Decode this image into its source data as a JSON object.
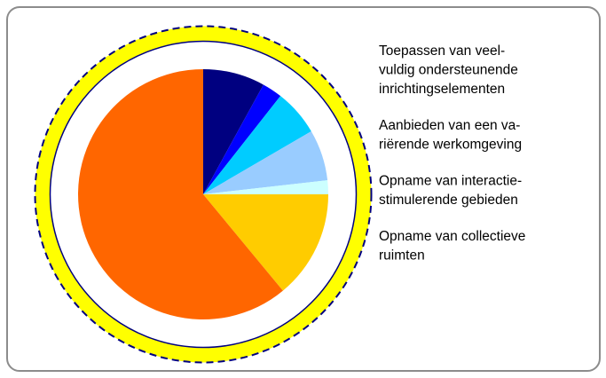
{
  "chart_data": {
    "type": "pie",
    "values": [
      8,
      2.6,
      6,
      6.6,
      1.8,
      14,
      61
    ],
    "colors": [
      "#000080",
      "#0000ff",
      "#00ccff",
      "#99ccff",
      "#ccffff",
      "#ffcc00",
      "#ff6600"
    ],
    "annotations": [
      [
        "Toepassen van veel-",
        "vuldig ondersteunende",
        "inrichtingselementen"
      ],
      [
        "Aanbieden van een va-",
        "riërende werkomgeving"
      ],
      [
        "Opname van interactie-",
        "stimulerende gebieden"
      ],
      [
        "Opname van collectieve",
        "ruimten"
      ]
    ]
  }
}
